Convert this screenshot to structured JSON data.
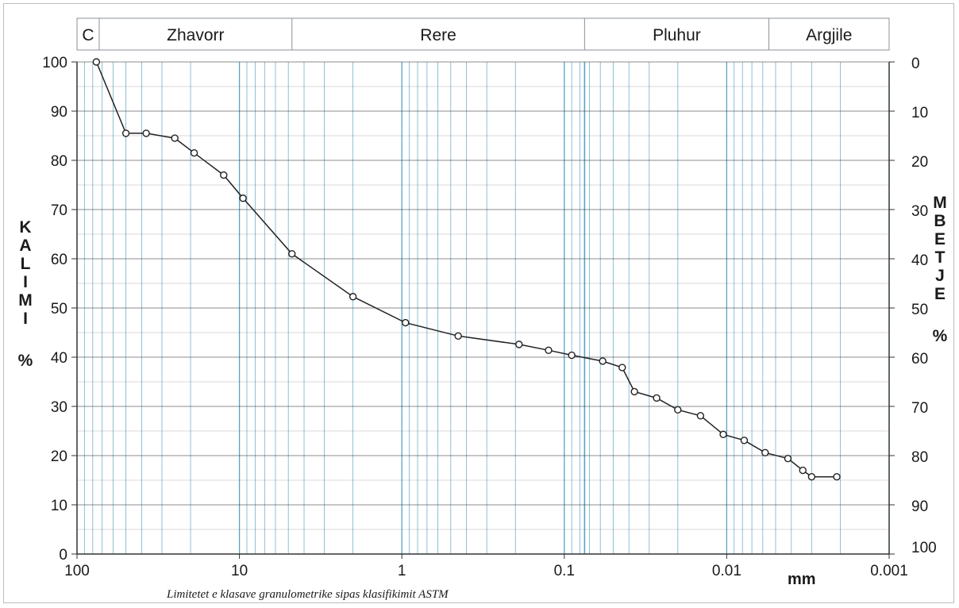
{
  "colors": {
    "grid": "#5aa3c6",
    "axis": "#333333",
    "line": "#222222",
    "header_border": "#8b9299"
  },
  "header": {
    "bands": [
      {
        "label": "C",
        "from": 100,
        "to": 73
      },
      {
        "label": "Zhavorr",
        "from": 73,
        "to": 4.75
      },
      {
        "label": "Rere",
        "from": 4.75,
        "to": 0.075
      },
      {
        "label": "Pluhur",
        "from": 0.075,
        "to": 0.0055
      },
      {
        "label": "Argjile",
        "from": 0.0055,
        "to": 0.001
      }
    ]
  },
  "chart_data": {
    "type": "line",
    "xscale": "log",
    "xlim": [
      100,
      0.001
    ],
    "x_unit": "mm",
    "xticks": [
      100,
      10,
      1,
      0.1,
      0.01,
      0.001
    ],
    "xtick_labels": [
      "100",
      "10",
      "1",
      "0.1",
      "0.01",
      "0.001"
    ],
    "ylim": [
      0,
      100
    ],
    "yticks_left": [
      "0",
      "10",
      "20",
      "30",
      "40",
      "50",
      "60",
      "70",
      "80",
      "90",
      "100"
    ],
    "yticks_right": [
      "100",
      "90",
      "80",
      "70",
      "60",
      "50",
      "40",
      "30",
      "20",
      "10",
      "0"
    ],
    "ylabel_left": "KALIMI",
    "ylabel_left_unit": "%",
    "ylabel_right": "MBETJE",
    "ylabel_right_unit": "%",
    "xlabel": "mm",
    "caption": "Limitetet e klasave granulometrike sipas klasifikimit ASTM",
    "grid": true,
    "series": [
      {
        "x": [
          76,
          50,
          37.5,
          25,
          19,
          12.5,
          9.5,
          4.75,
          2,
          0.95,
          0.45,
          0.19,
          0.125,
          0.09,
          0.058,
          0.044,
          0.037,
          0.027,
          0.02,
          0.0145,
          0.0105,
          0.0078,
          0.0058,
          0.0042,
          0.0034,
          0.003,
          0.0021
        ],
        "y": [
          100,
          85.5,
          85.5,
          84.5,
          81.5,
          77,
          72.3,
          61,
          52.3,
          47,
          44.3,
          42.6,
          41.4,
          40.4,
          39.2,
          37.9,
          33,
          31.7,
          29.3,
          28.1,
          24.3,
          23.1,
          20.6,
          19.4,
          17,
          15.7,
          15.7
        ]
      }
    ]
  }
}
